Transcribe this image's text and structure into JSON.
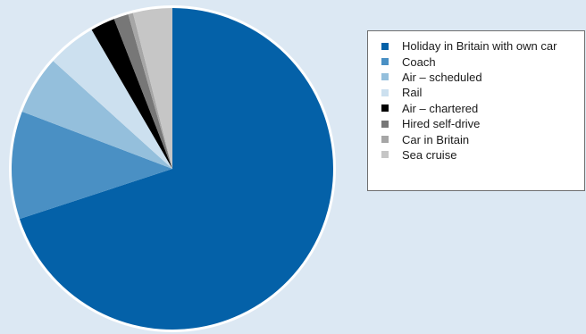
{
  "chart_data": {
    "type": "pie",
    "title": "",
    "legend_position": "right",
    "slices": [
      {
        "label": "Holiday in Britain with own car",
        "value": 71,
        "color": "#0461a8"
      },
      {
        "label": "Coach",
        "value": 11,
        "color": "#4a90c4"
      },
      {
        "label": "Air – scheduled",
        "value": 6,
        "color": "#94bfdc"
      },
      {
        "label": "Rail",
        "value": 5,
        "color": "#cce0ef"
      },
      {
        "label": "Air – chartered",
        "value": 2.5,
        "color": "#000000"
      },
      {
        "label": "Hired self-drive",
        "value": 1.5,
        "color": "#777777"
      },
      {
        "label": "Car in Britain",
        "value": 0.5,
        "color": "#a6a6a6"
      },
      {
        "label": "Sea cruise",
        "value": 4,
        "color": "#c6c6c6"
      }
    ]
  }
}
